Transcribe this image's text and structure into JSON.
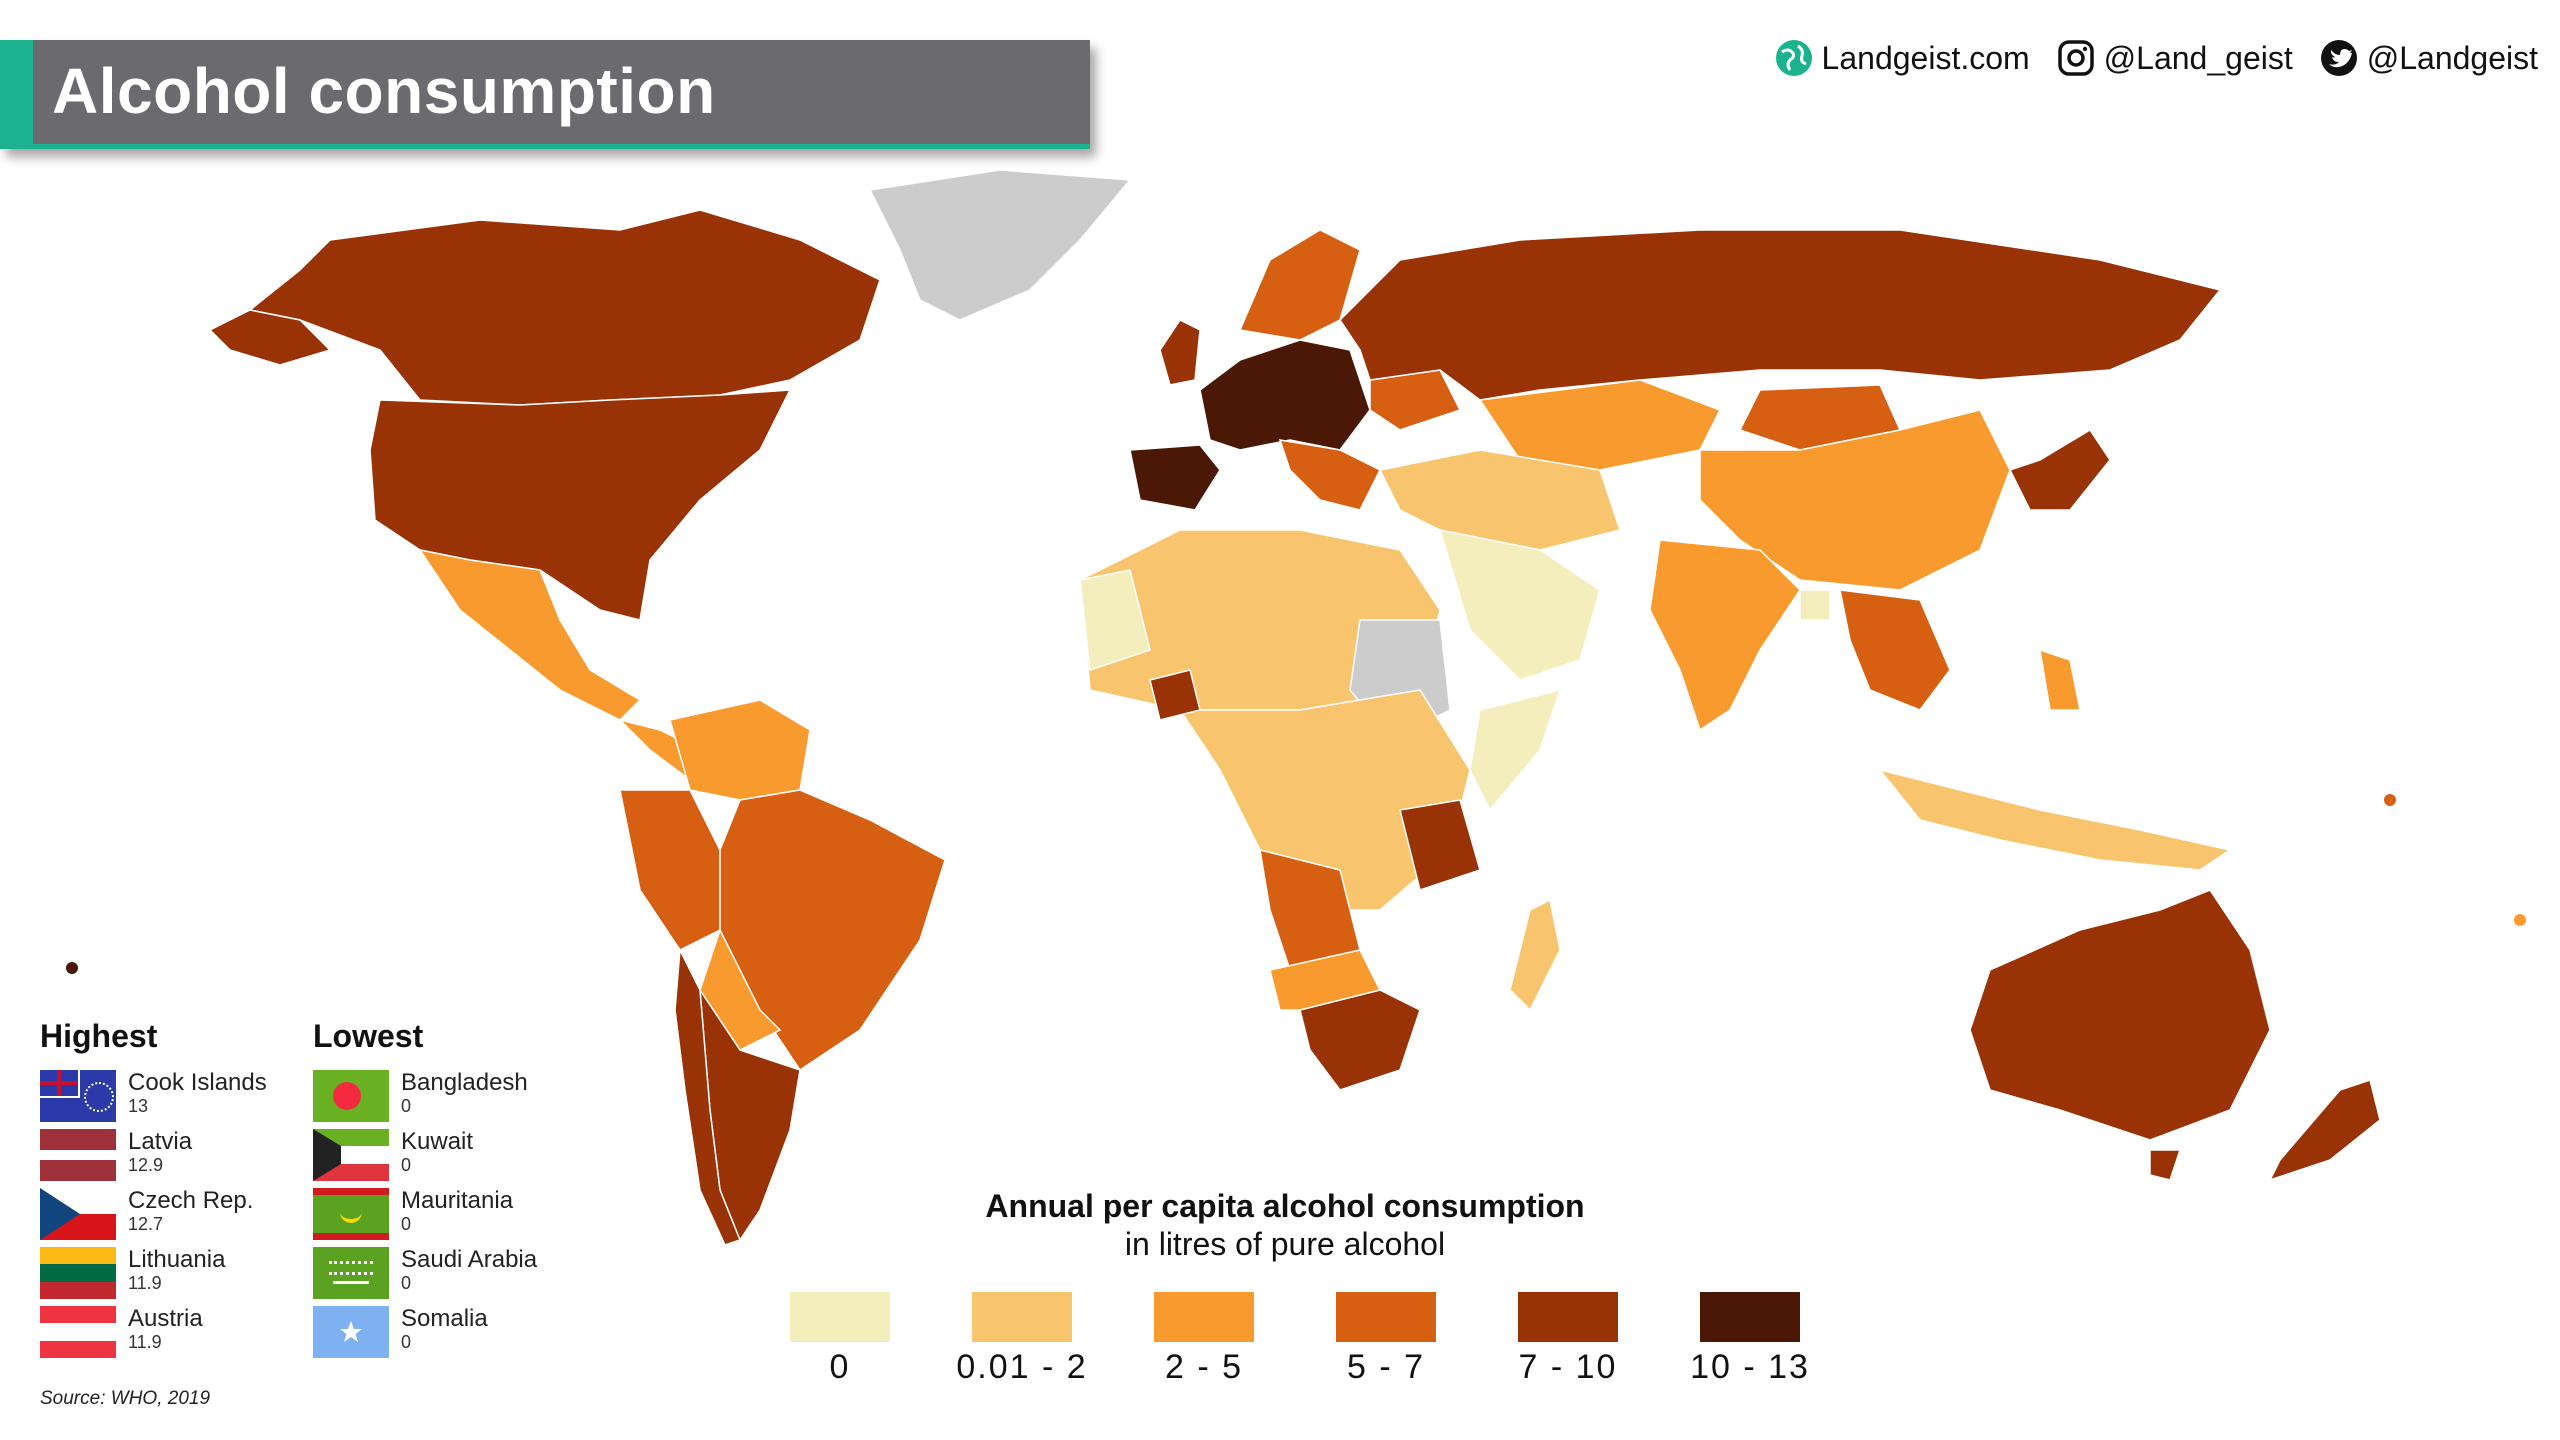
{
  "title": "Alcohol consumption",
  "social": {
    "website": "Landgeist.com",
    "instagram": "@Land_geist",
    "twitter": "@Landgeist"
  },
  "legend": {
    "title": "Annual per capita alcohol consumption",
    "subtitle": "in litres of pure alcohol",
    "bins": [
      {
        "label": "0",
        "color": "#f4eebc"
      },
      {
        "label": "0.01 - 2",
        "color": "#f8c56e"
      },
      {
        "label": "2 - 5",
        "color": "#f89a2e"
      },
      {
        "label": "5 - 7",
        "color": "#d75f12"
      },
      {
        "label": "7 - 10",
        "color": "#993306"
      },
      {
        "label": "10 - 13",
        "color": "#4b1805"
      }
    ],
    "no_data_color": "#cccccc"
  },
  "highest": {
    "heading": "Highest",
    "items": [
      {
        "name": "Cook Islands",
        "value": "13"
      },
      {
        "name": "Latvia",
        "value": "12.9"
      },
      {
        "name": "Czech Rep.",
        "value": "12.7"
      },
      {
        "name": "Lithuania",
        "value": "11.9"
      },
      {
        "name": "Austria",
        "value": "11.9"
      }
    ]
  },
  "lowest": {
    "heading": "Lowest",
    "items": [
      {
        "name": "Bangladesh",
        "value": "0"
      },
      {
        "name": "Kuwait",
        "value": "0"
      },
      {
        "name": "Mauritania",
        "value": "0"
      },
      {
        "name": "Saudi Arabia",
        "value": "0"
      },
      {
        "name": "Somalia",
        "value": "0"
      }
    ]
  },
  "source": "Source: WHO, 2019"
}
